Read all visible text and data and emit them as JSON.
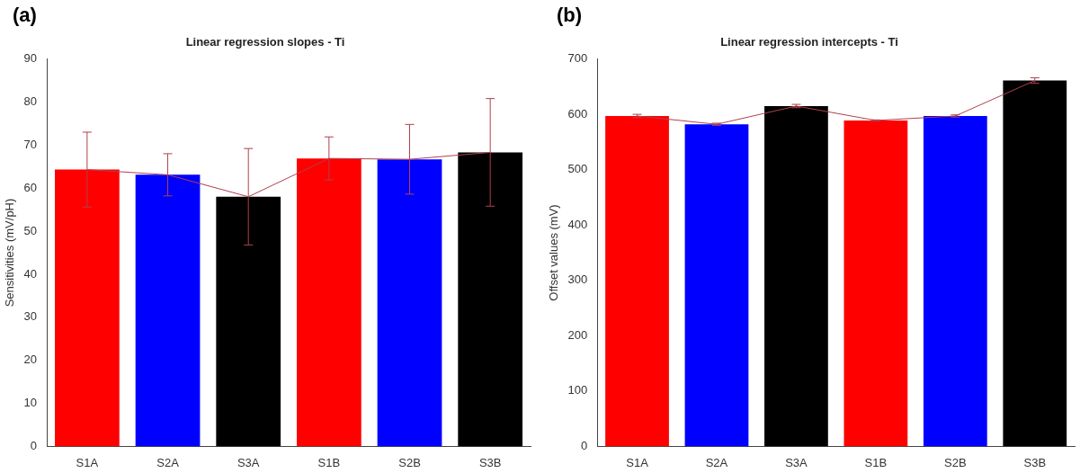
{
  "chart_data": [
    {
      "type": "bar",
      "title": "Linear regression slopes - Ti",
      "ylabel": "Sensitivities (mV/pH)",
      "annotations": [
        "(a)"
      ],
      "categories": [
        "S1A",
        "S2A",
        "S3A",
        "S1B",
        "S2B",
        "S3B"
      ],
      "series": [
        {
          "colors": [
            "#ff0000",
            "#0000ff",
            "#000000",
            "#ff0000",
            "#0000ff",
            "#000000"
          ],
          "values": [
            64.3,
            63.1,
            58.0,
            66.9,
            66.7,
            68.3
          ]
        },
        {
          "type": "line",
          "color": "#b0404e",
          "values": [
            64.3,
            63.1,
            58.0,
            66.9,
            66.7,
            68.3
          ],
          "errors": [
            8.7,
            4.9,
            11.2,
            5,
            8.1,
            12.5
          ]
        }
      ],
      "ylim": [
        0,
        90
      ],
      "yticks": [
        0,
        10,
        20,
        30,
        40,
        50,
        60,
        70,
        80,
        90
      ],
      "grid": false
    },
    {
      "type": "bar",
      "title": "Linear regression intercepts - Ti",
      "ylabel": "Offset values (mV)",
      "annotations": [
        "(b)"
      ],
      "categories": [
        "S1A",
        "S2A",
        "S3A",
        "S1B",
        "S2B",
        "S3B"
      ],
      "series": [
        {
          "colors": [
            "#ff0000",
            "#0000ff",
            "#000000",
            "#ff0000",
            "#0000ff",
            "#000000"
          ],
          "values": [
            597,
            582,
            615,
            589,
            597,
            661
          ]
        },
        {
          "type": "line",
          "color": "#b0404e",
          "values": [
            597,
            582,
            615,
            589,
            597,
            661
          ],
          "errors": [
            3,
            2,
            3,
            1,
            2,
            5
          ]
        }
      ],
      "ylim": [
        0,
        700
      ],
      "yticks": [
        0,
        100,
        200,
        300,
        400,
        500,
        600,
        700
      ],
      "grid": false
    }
  ]
}
